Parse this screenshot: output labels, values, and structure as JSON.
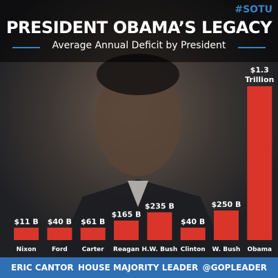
{
  "hashtag": "#SOTU",
  "title": "PRESIDENT OBAMA’S LEGACY",
  "subtitle": "Average Annual Deficit by President",
  "footer": {
    "left": "ERIC CANTOR",
    "center": "HOUSE MAJORITY LEADER",
    "right": "@GOPLEADER"
  },
  "colors": {
    "bar": "#d9352b",
    "accent": "#3b82c4",
    "footer_bg": "#2f6fb3"
  },
  "chart_data": {
    "type": "bar",
    "categories": [
      "Nixon",
      "Ford",
      "Carter",
      "Reagan",
      "H.W. Bush",
      "Clinton",
      "W. Bush",
      "Obama"
    ],
    "values": [
      11,
      40,
      61,
      165,
      235,
      40,
      250,
      1300
    ],
    "data_labels": [
      "$11 B",
      "$40 B",
      "$61 B",
      "$165 B",
      "$235 B",
      "$40 B",
      "$250 B",
      "$1.3 Trillion"
    ],
    "unit": "billion dollars",
    "title": "",
    "xlabel": "",
    "ylabel": "",
    "ylim": [
      0,
      1300
    ],
    "grid": false,
    "legend": "none"
  }
}
